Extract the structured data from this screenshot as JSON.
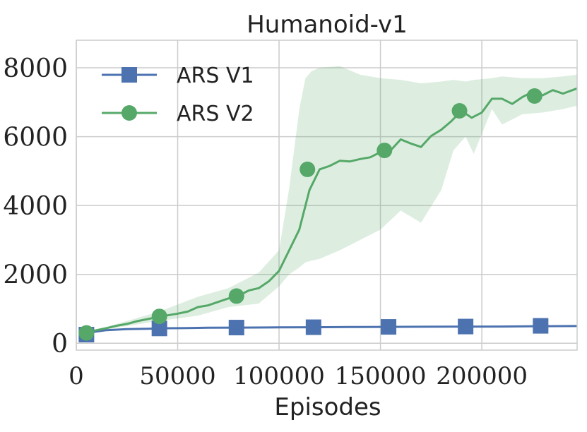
{
  "chart_data": {
    "type": "line",
    "title": "Humanoid-v1",
    "xlabel": "Episodes",
    "ylabel": "",
    "xlim": [
      0,
      247000
    ],
    "ylim": [
      -200,
      8800
    ],
    "xticks": [
      0,
      50000,
      100000,
      150000,
      200000
    ],
    "xtick_labels": [
      "0",
      "50000",
      "100000",
      "150000",
      "200000"
    ],
    "yticks": [
      0,
      2000,
      4000,
      6000,
      8000
    ],
    "ytick_labels": [
      "0",
      "2000",
      "4000",
      "6000",
      "8000"
    ],
    "grid": true,
    "legend_position": "top-left",
    "series": [
      {
        "name": "ARS V1",
        "color": "#4c72b0",
        "marker": "square",
        "x": [
          5000,
          15000,
          25000,
          35000,
          45000,
          55000,
          65000,
          80000,
          100000,
          117000,
          135000,
          152000,
          170000,
          191000,
          210000,
          230000,
          247000
        ],
        "y": [
          300,
          380,
          410,
          420,
          435,
          440,
          450,
          455,
          460,
          465,
          470,
          475,
          478,
          482,
          485,
          495,
          500
        ],
        "markers_x": [
          5000,
          41000,
          79000,
          117000,
          154000,
          192000,
          229000
        ],
        "markers_y": [
          250,
          430,
          455,
          465,
          475,
          485,
          505
        ]
      },
      {
        "name": "ARS V2",
        "color": "#55a868",
        "marker": "circle",
        "x": [
          5000,
          10000,
          15000,
          20000,
          25000,
          30000,
          35000,
          40000,
          45000,
          50000,
          55000,
          60000,
          65000,
          70000,
          75000,
          80000,
          85000,
          90000,
          95000,
          100000,
          105000,
          110000,
          115000,
          120000,
          125000,
          130000,
          135000,
          140000,
          145000,
          150000,
          155000,
          160000,
          165000,
          170000,
          175000,
          180000,
          185000,
          190000,
          195000,
          200000,
          205000,
          210000,
          215000,
          220000,
          225000,
          230000,
          235000,
          240000,
          247000
        ],
        "y": [
          300,
          380,
          440,
          510,
          560,
          640,
          700,
          760,
          810,
          860,
          920,
          1050,
          1100,
          1200,
          1300,
          1380,
          1530,
          1600,
          1800,
          2100,
          2700,
          3300,
          4450,
          5050,
          5150,
          5300,
          5280,
          5350,
          5400,
          5550,
          5600,
          5920,
          5800,
          5700,
          6020,
          6200,
          6450,
          6750,
          6550,
          6700,
          7100,
          7100,
          6950,
          7150,
          7300,
          7200,
          7350,
          7250,
          7400
        ],
        "markers_x": [
          5000,
          41000,
          79000,
          114000,
          152000,
          189000,
          226000
        ],
        "markers_y": [
          300,
          780,
          1370,
          5050,
          5600,
          6750,
          7180
        ],
        "band_x": [
          5000,
          20000,
          40000,
          60000,
          75000,
          90000,
          100000,
          105000,
          110000,
          113000,
          116000,
          120000,
          130000,
          140000,
          150000,
          160000,
          170000,
          180000,
          186000,
          192000,
          196000,
          205000,
          210000,
          220000,
          230000,
          240000,
          247000
        ],
        "band_upper": [
          320,
          560,
          900,
          1350,
          1600,
          2050,
          2700,
          4500,
          6800,
          7700,
          7900,
          8000,
          8050,
          7800,
          7700,
          7650,
          7550,
          7600,
          7650,
          7600,
          7650,
          7700,
          7750,
          7700,
          7700,
          7750,
          7800
        ],
        "band_lower": [
          280,
          450,
          640,
          800,
          1050,
          1150,
          1650,
          2000,
          2200,
          2350,
          2400,
          2450,
          2700,
          3000,
          3300,
          3850,
          3500,
          4450,
          5600,
          6000,
          5500,
          6800,
          6350,
          6650,
          6700,
          6800,
          6900
        ]
      }
    ]
  }
}
